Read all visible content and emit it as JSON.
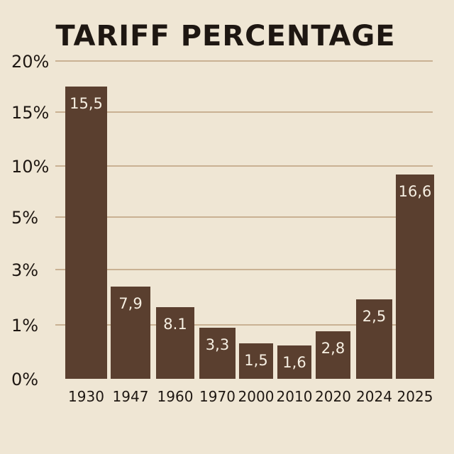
{
  "chart_data": {
    "type": "bar",
    "title": "TARIFF PERCENTAGE",
    "xlabel": "",
    "ylabel": "",
    "categories": [
      "1930",
      "1947",
      "1960",
      "1970",
      "2000",
      "2010",
      "2020",
      "2024",
      "2025"
    ],
    "values": [
      15.5,
      7.9,
      8.1,
      3.3,
      1.5,
      1.6,
      2.8,
      2.5,
      16.6
    ],
    "value_labels": [
      "15,5",
      "7,9",
      "8.1",
      "3,3",
      "1,5",
      "1,6",
      "2,8",
      "2,5",
      "16,6"
    ],
    "y_ticks": [
      "0%",
      "1%",
      "3%",
      "5%",
      "10%",
      "15%",
      "20%"
    ],
    "grid": true,
    "colors": {
      "background": "#efe6d4",
      "bar": "#5a3f2f",
      "grid": "#c9b193",
      "text": "#1e1712",
      "label": "#f6efe2"
    }
  }
}
